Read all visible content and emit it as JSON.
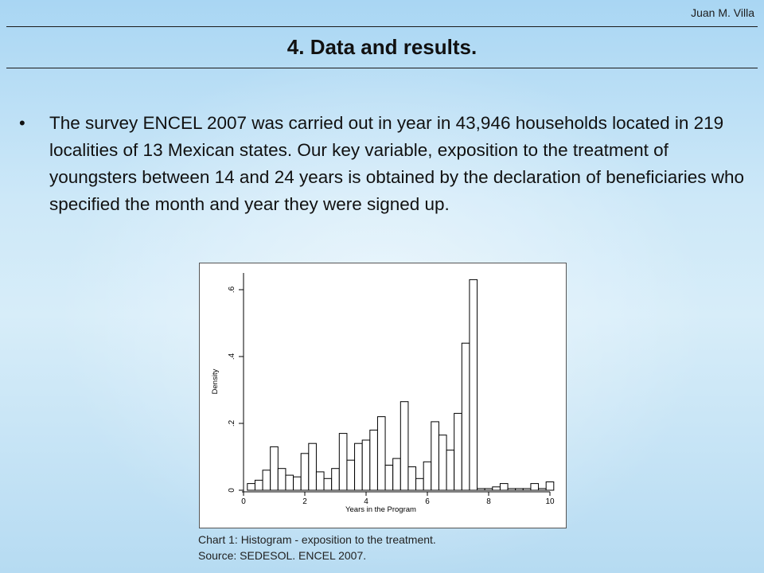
{
  "header": {
    "author": "Juan M. Villa",
    "title": "4. Data and results."
  },
  "body": {
    "bullet_symbol": "•",
    "bullet_text": "The survey ENCEL 2007 was carried out in year in 43,946 households located in 219 localities of 13 Mexican states. Our key variable, exposition to the treatment of youngsters between 14 and 24 years is obtained by the declaration of beneficiaries who specified the month and year they were signed up."
  },
  "caption": {
    "line1": "Chart 1: Histogram - exposition to the treatment.",
    "line2": "Source: SEDESOL. ENCEL 2007."
  },
  "chart_data": {
    "type": "bar",
    "xlabel": "Years in the Program",
    "ylabel": "Density",
    "xlim": [
      0,
      10
    ],
    "ylim": [
      0,
      0.65
    ],
    "x_ticks": [
      0,
      2,
      4,
      6,
      8,
      10
    ],
    "x_tick_labels": [
      "0",
      "2",
      "4",
      "6",
      "8",
      "10"
    ],
    "y_ticks": [
      0,
      0.2,
      0.4,
      0.6
    ],
    "y_tick_labels": [
      "0",
      ".2",
      ".4",
      ".6"
    ],
    "bin_width": 0.25,
    "bins_start": [
      0.125,
      0.375,
      0.625,
      0.875,
      1.125,
      1.375,
      1.625,
      1.875,
      2.125,
      2.375,
      2.625,
      2.875,
      3.125,
      3.375,
      3.625,
      3.875,
      4.125,
      4.375,
      4.625,
      4.875,
      5.125,
      5.375,
      5.625,
      5.875,
      6.125,
      6.375,
      6.625,
      6.875,
      7.125,
      7.375,
      7.625,
      7.875,
      8.125,
      8.375,
      8.625,
      8.875,
      9.125,
      9.375,
      9.625,
      9.875
    ],
    "values": [
      0.02,
      0.03,
      0.06,
      0.13,
      0.065,
      0.045,
      0.04,
      0.11,
      0.14,
      0.055,
      0.035,
      0.065,
      0.17,
      0.09,
      0.14,
      0.15,
      0.18,
      0.22,
      0.075,
      0.095,
      0.265,
      0.07,
      0.035,
      0.085,
      0.205,
      0.165,
      0.12,
      0.23,
      0.44,
      0.63,
      0.005,
      0.005,
      0.01,
      0.02,
      0.005,
      0.005,
      0.005,
      0.02,
      0.005,
      0.025
    ]
  }
}
